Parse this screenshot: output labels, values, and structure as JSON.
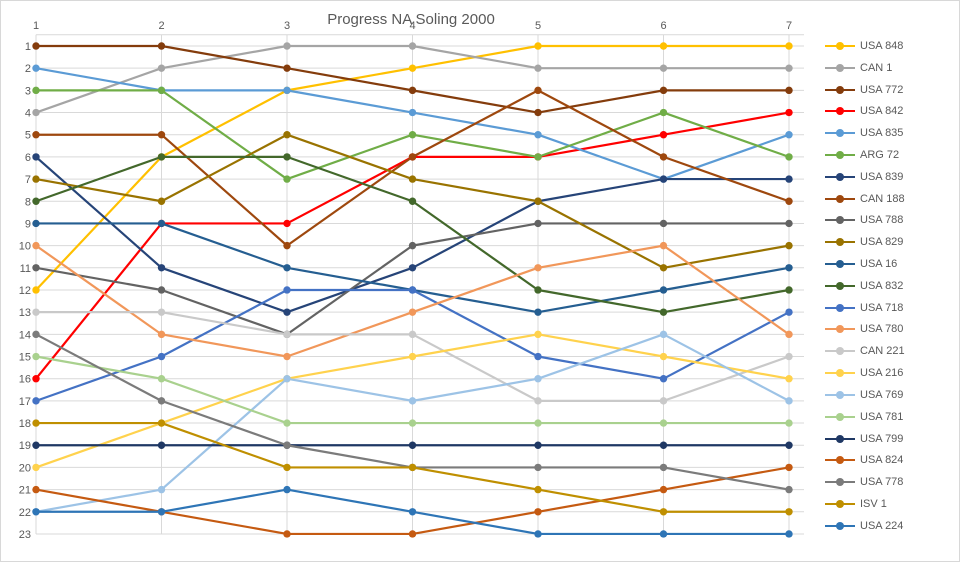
{
  "chart_data": {
    "type": "line",
    "subtype": "bump-rank-progress",
    "title": "Progress NA Soling 2000",
    "xlabel": "",
    "ylabel": "",
    "x_categories": [
      "1",
      "2",
      "3",
      "4",
      "5",
      "6",
      "7"
    ],
    "y_axis": {
      "min": 1,
      "max": 23,
      "inverted": true,
      "tick_labels": [
        "1",
        "2",
        "3",
        "4",
        "5",
        "6",
        "7",
        "8",
        "9",
        "10",
        "11",
        "12",
        "13",
        "14",
        "15",
        "16",
        "17",
        "18",
        "19",
        "20",
        "21",
        "22",
        "23"
      ]
    },
    "grid": true,
    "grid_color": "#D9D9D9",
    "tick_color": "#595959",
    "title_color": "#595959",
    "legend_position": "right",
    "series": [
      {
        "name": "USA 848",
        "color": "#FFC000",
        "ranks": [
          12,
          6,
          3,
          2,
          1,
          1,
          1
        ]
      },
      {
        "name": "CAN 1",
        "color": "#A5A5A5",
        "ranks": [
          4,
          2,
          1,
          1,
          2,
          2,
          2
        ]
      },
      {
        "name": "USA 772",
        "color": "#843C0C",
        "ranks": [
          1,
          1,
          2,
          3,
          4,
          3,
          3
        ]
      },
      {
        "name": "USA 842",
        "color": "#FF0000",
        "ranks": [
          16,
          9,
          9,
          6,
          6,
          5,
          4
        ]
      },
      {
        "name": "USA 835",
        "color": "#5B9BD5",
        "ranks": [
          2,
          3,
          3,
          4,
          5,
          7,
          5
        ]
      },
      {
        "name": "ARG 72",
        "color": "#70AD47",
        "ranks": [
          3,
          3,
          7,
          5,
          6,
          4,
          6
        ]
      },
      {
        "name": "USA 839",
        "color": "#264478",
        "ranks": [
          6,
          11,
          13,
          11,
          8,
          7,
          7
        ]
      },
      {
        "name": "CAN 188",
        "color": "#9E480E",
        "ranks": [
          5,
          5,
          10,
          6,
          3,
          6,
          8
        ]
      },
      {
        "name": "USA 788",
        "color": "#636363",
        "ranks": [
          11,
          12,
          14,
          10,
          9,
          9,
          9
        ]
      },
      {
        "name": "USA 829",
        "color": "#997300",
        "ranks": [
          7,
          8,
          5,
          7,
          8,
          11,
          10
        ]
      },
      {
        "name": "USA 16",
        "color": "#255E91",
        "ranks": [
          9,
          9,
          11,
          12,
          13,
          12,
          11
        ]
      },
      {
        "name": "USA 832",
        "color": "#43682B",
        "ranks": [
          8,
          6,
          6,
          8,
          12,
          13,
          12
        ]
      },
      {
        "name": "USA 718",
        "color": "#4472C4",
        "ranks": [
          17,
          15,
          12,
          12,
          15,
          16,
          13
        ]
      },
      {
        "name": "USA 780",
        "color": "#F1975A",
        "ranks": [
          10,
          14,
          15,
          13,
          11,
          10,
          14
        ]
      },
      {
        "name": "CAN 221",
        "color": "#C9C9C9",
        "ranks": [
          13,
          13,
          14,
          14,
          17,
          17,
          15
        ]
      },
      {
        "name": "USA 216",
        "color": "#FFD24D",
        "ranks": [
          20,
          18,
          16,
          15,
          14,
          15,
          16
        ]
      },
      {
        "name": "USA 769",
        "color": "#9DC3E6",
        "ranks": [
          22,
          21,
          16,
          17,
          16,
          14,
          17
        ]
      },
      {
        "name": "USA 781",
        "color": "#A9D18E",
        "ranks": [
          15,
          16,
          18,
          18,
          18,
          18,
          18
        ]
      },
      {
        "name": "USA 799",
        "color": "#1F3864",
        "ranks": [
          19,
          19,
          19,
          19,
          19,
          19,
          19
        ]
      },
      {
        "name": "USA 824",
        "color": "#C55A11",
        "ranks": [
          21,
          22,
          23,
          23,
          22,
          21,
          20
        ]
      },
      {
        "name": "USA 778",
        "color": "#7B7B7B",
        "ranks": [
          14,
          17,
          19,
          20,
          20,
          20,
          21
        ]
      },
      {
        "name": "ISV 1",
        "color": "#BF8F00",
        "ranks": [
          18,
          18,
          20,
          20,
          21,
          22,
          22
        ]
      },
      {
        "name": "USA 224",
        "color": "#2E75B6",
        "ranks": [
          22,
          22,
          21,
          22,
          23,
          23,
          23
        ]
      }
    ]
  }
}
